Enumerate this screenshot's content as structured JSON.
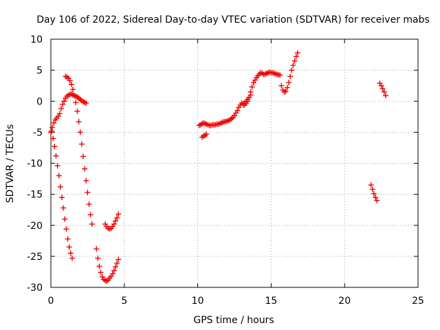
{
  "chart_data": {
    "type": "scatter",
    "title": "Day 106 of 2022, Sidereal Day-to-day VTEC variation (SDTVAR) for receiver mabs",
    "xlabel": "GPS time / hours",
    "ylabel": "SDTVAR / TECUs",
    "xlim": [
      0,
      25
    ],
    "ylim": [
      -30,
      10
    ],
    "xticks": [
      0,
      5,
      10,
      15,
      20,
      25
    ],
    "yticks": [
      -30,
      -25,
      -20,
      -15,
      -10,
      -5,
      0,
      5,
      10
    ],
    "grid": true,
    "marker": "+",
    "color": "#ee0000",
    "series": [
      {
        "x": [
          0.0,
          0.1,
          0.2,
          0.3,
          0.4,
          0.5,
          0.6,
          0.7,
          0.8,
          0.9,
          1.0,
          1.1,
          1.2,
          1.3,
          1.4,
          1.5,
          1.6,
          1.7,
          1.8,
          1.9,
          2.0,
          2.1,
          2.2,
          2.3,
          2.4
        ],
        "y": [
          -5.0,
          -4.2,
          -3.5,
          -3.0,
          -2.7,
          -2.4,
          -2.0,
          -1.2,
          -0.5,
          0.0,
          0.5,
          0.8,
          1.0,
          1.1,
          1.2,
          1.0,
          0.9,
          0.8,
          0.7,
          0.5,
          0.3,
          0.1,
          -0.1,
          -0.2,
          -0.3
        ]
      },
      {
        "x": [
          0.05,
          0.15,
          0.25,
          0.35,
          0.45,
          0.55,
          0.65,
          0.75,
          0.85,
          0.95,
          1.05,
          1.15,
          1.25,
          1.35,
          1.45
        ],
        "y": [
          -4.8,
          -6.0,
          -7.3,
          -8.8,
          -10.4,
          -12.0,
          -13.8,
          -15.5,
          -17.2,
          -19.0,
          -20.6,
          -22.2,
          -23.5,
          -24.5,
          -25.3
        ]
      },
      {
        "x": [
          1.0,
          1.1,
          1.2,
          1.3,
          1.4,
          1.5,
          1.6,
          1.7,
          1.8,
          1.9,
          2.0,
          2.1,
          2.2,
          2.3,
          2.4,
          2.5,
          2.6,
          2.7,
          2.8
        ],
        "y": [
          4.0,
          3.9,
          3.7,
          3.3,
          2.7,
          1.9,
          0.9,
          -0.2,
          -1.6,
          -3.3,
          -5.0,
          -6.9,
          -8.9,
          -10.9,
          -12.8,
          -14.7,
          -16.6,
          -18.3,
          -19.8
        ]
      },
      {
        "x": [
          3.1,
          3.2,
          3.3,
          3.4,
          3.5,
          3.6,
          3.7,
          3.8,
          3.9,
          4.0,
          4.1,
          4.2,
          4.3,
          4.4,
          4.5,
          4.6
        ],
        "y": [
          -23.8,
          -25.3,
          -26.6,
          -27.6,
          -28.3,
          -28.7,
          -28.9,
          -29.0,
          -28.8,
          -28.5,
          -28.2,
          -27.8,
          -27.3,
          -26.7,
          -26.1,
          -25.5
        ]
      },
      {
        "x": [
          3.7,
          3.8,
          3.9,
          4.0,
          4.1,
          4.2,
          4.3,
          4.4,
          4.5,
          4.6
        ],
        "y": [
          -19.8,
          -20.2,
          -20.5,
          -20.6,
          -20.5,
          -20.2,
          -19.8,
          -19.3,
          -18.8,
          -18.2
        ]
      },
      {
        "x": [
          10.1,
          10.2,
          10.3,
          10.4,
          10.5,
          10.6,
          10.7,
          10.8,
          10.9,
          11.0,
          11.1,
          11.2,
          11.3,
          11.4,
          11.5,
          11.6,
          11.7,
          11.8,
          11.9,
          12.0,
          12.1,
          12.2,
          12.3,
          12.4,
          12.5,
          12.6,
          12.7,
          12.8,
          12.9,
          13.0,
          13.1,
          13.2,
          13.3,
          13.4,
          13.5,
          13.6,
          13.7,
          13.8,
          13.9,
          14.0,
          14.1,
          14.2,
          14.3,
          14.4,
          14.5,
          14.6,
          14.7,
          14.8,
          14.9,
          15.0,
          15.1,
          15.2,
          15.3,
          15.4,
          15.5,
          15.6
        ],
        "y": [
          -3.9,
          -3.8,
          -3.6,
          -3.5,
          -3.6,
          -3.7,
          -3.8,
          -3.9,
          -3.9,
          -3.8,
          -3.8,
          -3.8,
          -3.7,
          -3.7,
          -3.6,
          -3.5,
          -3.4,
          -3.3,
          -3.3,
          -3.2,
          -3.1,
          -3.0,
          -2.8,
          -2.6,
          -2.3,
          -1.9,
          -1.5,
          -1.0,
          -0.6,
          -0.3,
          -0.4,
          -0.6,
          -0.3,
          0.0,
          0.6,
          1.5,
          2.3,
          3.0,
          3.4,
          3.8,
          4.1,
          4.4,
          4.6,
          4.5,
          4.3,
          4.4,
          4.5,
          4.6,
          4.7,
          4.6,
          4.6,
          4.5,
          4.4,
          4.3,
          4.3,
          4.2
        ]
      },
      {
        "x": [
          10.3,
          10.4,
          10.5,
          10.6
        ],
        "y": [
          -5.8,
          -5.6,
          -5.5,
          -5.3
        ]
      },
      {
        "x": [
          13.1,
          13.2,
          13.3,
          13.4,
          13.5,
          13.6
        ],
        "y": [
          -0.6,
          -0.3,
          0.0,
          0.3,
          0.6,
          1.0
        ]
      },
      {
        "x": [
          15.7,
          15.8,
          15.9,
          16.0,
          16.1,
          16.2,
          16.3,
          16.4,
          16.5,
          16.6,
          16.7,
          16.8
        ],
        "y": [
          2.5,
          1.8,
          1.5,
          1.6,
          2.2,
          3.0,
          4.0,
          5.0,
          5.8,
          6.5,
          7.2,
          7.8
        ]
      },
      {
        "x": [
          21.8,
          21.9,
          22.0,
          22.1,
          22.2
        ],
        "y": [
          -13.5,
          -14.2,
          -14.9,
          -15.5,
          -16.0
        ]
      },
      {
        "x": [
          22.4,
          22.5,
          22.6,
          22.7,
          22.8
        ],
        "y": [
          2.9,
          2.5,
          2.0,
          1.5,
          0.9
        ]
      }
    ]
  }
}
